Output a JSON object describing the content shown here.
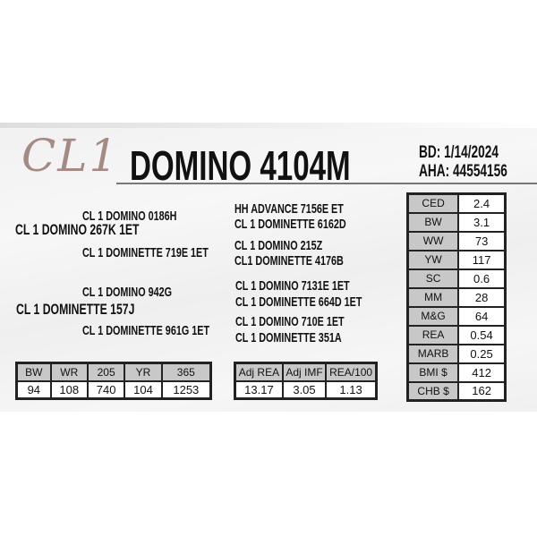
{
  "logo": "CL1",
  "title": "DOMINO 4104M",
  "bd": "BD: 1/14/2024",
  "aha": "AHA: 44554156",
  "pedigree_left": [
    "CL 1 DOMINO 0186H",
    "CL 1 DOMINO 267K 1ET",
    "CL 1 DOMINETTE 719E 1ET",
    "CL 1 DOMINO 942G",
    "CL 1 DOMINETTE 157J",
    "CL 1 DOMINETTE 961G 1ET"
  ],
  "pedigree_right": [
    "HH ADVANCE 7156E ET",
    "CL 1 DOMINETTE 6162D",
    "CL 1 DOMINO 215Z",
    "CL1 DOMINETTE 4176B",
    "CL 1 DOMINO 7131E 1ET",
    "CL 1 DOMINETTE 664D 1ET",
    "CL 1 DOMINO 710E 1ET",
    "CL 1 DOMINETTE 351A"
  ],
  "epds": [
    [
      "CED",
      "2.4"
    ],
    [
      "BW",
      "3.1"
    ],
    [
      "WW",
      "73"
    ],
    [
      "YW",
      "117"
    ],
    [
      "SC",
      "0.6"
    ],
    [
      "MM",
      "28"
    ],
    [
      "M&G",
      "64"
    ],
    [
      "REA",
      "0.54"
    ],
    [
      "MARB",
      "0.25"
    ],
    [
      "BMI $",
      "412"
    ],
    [
      "CHB $",
      "162"
    ]
  ],
  "weights": {
    "headers": [
      "BW",
      "WR",
      "205",
      "YR",
      "365"
    ],
    "values": [
      "94",
      "108",
      "740",
      "104",
      "1253"
    ]
  },
  "carcass": {
    "headers": [
      "Adj REA",
      "Adj IMF",
      "REA/100"
    ],
    "values": [
      "13.17",
      "3.05",
      "1.13"
    ]
  },
  "colors": {
    "logo": "#a58a84",
    "header_cell": "#c8c8c8"
  }
}
